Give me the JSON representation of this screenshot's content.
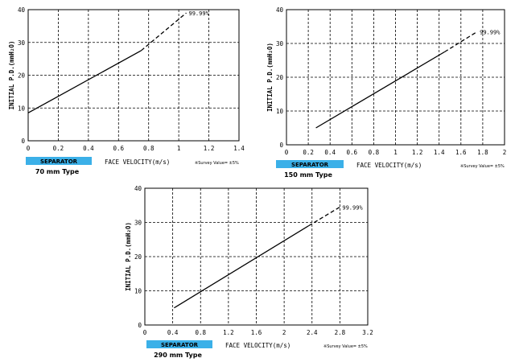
{
  "chart_data": [
    {
      "type": "line",
      "separator_label": "SEPARATOR",
      "type_label": "70 mm Type",
      "xlabel": "FACE VELOCITY(m/s)",
      "ylabel": "INITIAL P.D.(mmH₂O)",
      "survey_note": "※Survey Value= ±5%",
      "annotation": "99.99%",
      "xlim": [
        0,
        1.4
      ],
      "ylim": [
        0,
        40
      ],
      "x_ticks": [
        "0",
        "0.2",
        "0.4",
        "0.6",
        "0.8",
        "1",
        "1.2",
        "1.4"
      ],
      "y_ticks": [
        "0",
        "10",
        "20",
        "30",
        "40"
      ],
      "grid": true,
      "series_solid": [
        [
          0,
          8.5
        ],
        [
          0.75,
          27.5
        ]
      ],
      "series_dashed": [
        [
          0.75,
          27.5
        ],
        [
          1.05,
          39
        ]
      ]
    },
    {
      "type": "line",
      "separator_label": "SEPARATOR",
      "type_label": "150 mm Type",
      "xlabel": "FACE VELOCITY(m/s)",
      "ylabel": "INITIAL P.D.(mmH₂O)",
      "survey_note": "※Survey Value= ±5%",
      "annotation": "99.99%",
      "xlim": [
        0,
        2
      ],
      "ylim": [
        0,
        40
      ],
      "x_ticks": [
        "0",
        "0.2",
        "0.4",
        "0.6",
        "0.8",
        "1",
        "1.2",
        "1.4",
        "1.6",
        "1.8",
        "2"
      ],
      "y_ticks": [
        "0",
        "10",
        "20",
        "30",
        "40"
      ],
      "grid": true,
      "series_solid": [
        [
          0.27,
          5
        ],
        [
          1.45,
          27.5
        ]
      ],
      "series_dashed": [
        [
          1.45,
          27.5
        ],
        [
          1.75,
          33.5
        ]
      ]
    },
    {
      "type": "line",
      "separator_label": "SEPARATOR",
      "type_label": "290 mm Type",
      "xlabel": "FACE VELOCITY(m/s)",
      "ylabel": "INITIAL P.D.(mmH₂O)",
      "survey_note": "※Survey Value= ±5%",
      "annotation": "99.99%",
      "xlim": [
        0,
        3.2
      ],
      "ylim": [
        0,
        40
      ],
      "x_ticks": [
        "0",
        "0.4",
        "0.8",
        "1.2",
        "1.6",
        "2",
        "2.4",
        "2.8",
        "3.2"
      ],
      "y_ticks": [
        "0",
        "10",
        "20",
        "30",
        "40"
      ],
      "grid": true,
      "series_solid": [
        [
          0.42,
          5
        ],
        [
          2.35,
          29
        ]
      ],
      "series_dashed": [
        [
          2.35,
          29
        ],
        [
          2.8,
          34.5
        ]
      ]
    }
  ],
  "colors": {
    "separator_tag": "#3bb0e8",
    "line": "#000000"
  }
}
